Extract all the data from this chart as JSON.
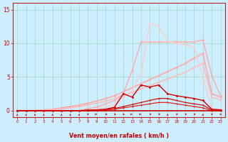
{
  "bg_color": "#cceeff",
  "grid_color": "#aaddcc",
  "xlabel": "Vent moyen/en rafales ( km/h )",
  "xlim": [
    -0.5,
    23.5
  ],
  "ylim": [
    -1.0,
    16.0
  ],
  "x": [
    0,
    1,
    2,
    3,
    4,
    5,
    6,
    7,
    8,
    9,
    10,
    11,
    12,
    13,
    14,
    15,
    16,
    17,
    18,
    19,
    20,
    21,
    22,
    23
  ],
  "lines": [
    {
      "name": "upper_envelope_max",
      "y": [
        0,
        0,
        0,
        0.1,
        0.2,
        0.4,
        0.6,
        0.8,
        1.1,
        1.4,
        1.8,
        2.2,
        2.8,
        3.4,
        4.0,
        4.6,
        5.2,
        5.8,
        6.4,
        7.0,
        7.8,
        8.5,
        2.5,
        2.0
      ],
      "color": "#ffaaaa",
      "lw": 1.2,
      "marker": "o",
      "ms": 2.0,
      "zorder": 2
    },
    {
      "name": "upper_envelope_min",
      "y": [
        0,
        0,
        0,
        0.05,
        0.1,
        0.25,
        0.4,
        0.6,
        0.85,
        1.1,
        1.4,
        1.75,
        2.2,
        2.7,
        3.2,
        3.7,
        4.2,
        4.7,
        5.2,
        5.7,
        6.4,
        7.0,
        2.0,
        1.6
      ],
      "color": "#ffbbbb",
      "lw": 1.1,
      "marker": "o",
      "ms": 1.8,
      "zorder": 2
    },
    {
      "name": "peaked_light",
      "y": [
        0,
        0,
        0,
        0,
        0,
        0,
        0,
        0,
        0.3,
        0.5,
        1.0,
        1.5,
        2.5,
        6.0,
        10.2,
        10.2,
        10.2,
        10.2,
        10.2,
        10.2,
        10.2,
        10.5,
        5.2,
        2.2
      ],
      "color": "#ffaaaa",
      "lw": 1.0,
      "marker": "o",
      "ms": 2.0,
      "zorder": 3
    },
    {
      "name": "peaked_lightest",
      "y": [
        0,
        0,
        0,
        0,
        0,
        0,
        0,
        0,
        0,
        0.2,
        0.5,
        0.9,
        2.0,
        3.0,
        5.5,
        13.0,
        12.5,
        10.3,
        10.0,
        9.8,
        9.5,
        4.8,
        0.3,
        0.2
      ],
      "color": "#ffcccc",
      "lw": 1.0,
      "marker": "o",
      "ms": 1.8,
      "zorder": 3
    },
    {
      "name": "dark_oscillating",
      "y": [
        0,
        0,
        0,
        0,
        0,
        0,
        0,
        0,
        0.05,
        0.1,
        0.2,
        0.5,
        2.5,
        2.0,
        3.8,
        3.5,
        3.8,
        2.5,
        2.2,
        2.0,
        1.8,
        1.5,
        0.2,
        0.1
      ],
      "color": "#cc0000",
      "lw": 1.0,
      "marker": "o",
      "ms": 2.0,
      "zorder": 4
    },
    {
      "name": "dark_lower_band1",
      "y": [
        0,
        0,
        0,
        0,
        0,
        0,
        0,
        0,
        0.05,
        0.1,
        0.15,
        0.3,
        0.6,
        0.9,
        1.2,
        1.5,
        1.8,
        1.8,
        1.5,
        1.2,
        1.0,
        0.8,
        0.1,
        0.0
      ],
      "color": "#cc1111",
      "lw": 0.9,
      "marker": "o",
      "ms": 1.5,
      "zorder": 4
    },
    {
      "name": "dark_lower_band2",
      "y": [
        0,
        0,
        0,
        0,
        0,
        0,
        0,
        0,
        0,
        0,
        0.1,
        0.2,
        0.4,
        0.6,
        0.8,
        1.0,
        1.2,
        1.2,
        1.0,
        0.8,
        0.6,
        0.4,
        0.0,
        0.0
      ],
      "color": "#dd2222",
      "lw": 0.9,
      "marker": "o",
      "ms": 1.5,
      "zorder": 4
    },
    {
      "name": "baseline",
      "y": [
        0,
        0,
        0,
        0,
        0,
        0,
        0,
        0,
        0,
        0,
        0,
        0,
        0,
        0,
        0,
        0,
        0,
        0,
        0,
        0,
        0,
        0,
        0,
        0
      ],
      "color": "#cc0000",
      "lw": 1.2,
      "marker": null,
      "ms": 0,
      "zorder": 5
    }
  ],
  "yticks": [
    0,
    5,
    10,
    15
  ],
  "xticks": [
    0,
    1,
    2,
    3,
    4,
    5,
    6,
    7,
    8,
    9,
    10,
    11,
    12,
    13,
    14,
    15,
    16,
    17,
    18,
    19,
    20,
    21,
    22,
    23
  ],
  "arrow_dirs_deg": [
    90,
    90,
    90,
    90,
    90,
    90,
    90,
    90,
    60,
    0,
    330,
    330,
    315,
    0,
    0,
    30,
    30,
    90,
    30,
    30,
    30,
    90,
    120,
    120
  ]
}
